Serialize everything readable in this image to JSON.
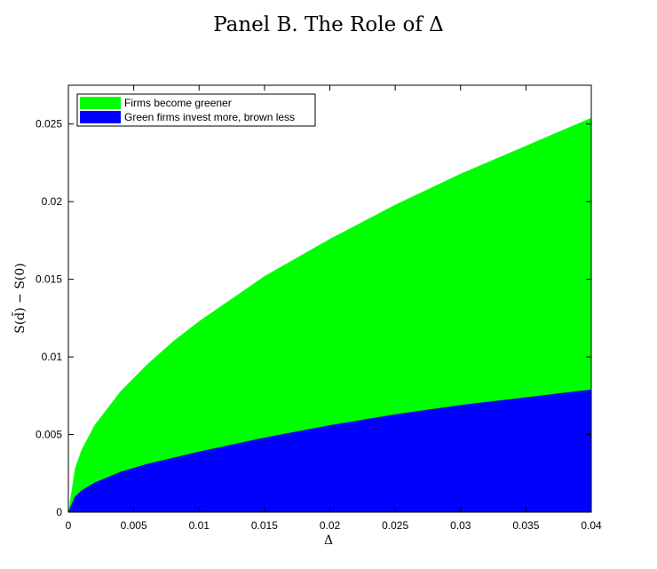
{
  "chart_data": {
    "type": "area",
    "title": "Panel B. The Role of Δ",
    "xlabel": "Δ",
    "ylabel": "S(d̄) − S(0)",
    "xlim": [
      0,
      0.04
    ],
    "ylim": [
      0,
      0.0275
    ],
    "x_ticks": [
      0,
      0.005,
      0.01,
      0.015,
      0.02,
      0.025,
      0.03,
      0.035,
      0.04
    ],
    "x_tick_labels": [
      "0",
      "0.005",
      "0.01",
      "0.015",
      "0.02",
      "0.025",
      "0.03",
      "0.035",
      "0.04"
    ],
    "y_ticks": [
      0,
      0.005,
      0.01,
      0.015,
      0.02,
      0.025
    ],
    "y_tick_labels": [
      "0",
      "0.005",
      "0.01",
      "0.015",
      "0.02",
      "0.025"
    ],
    "grid": false,
    "legend_position": "top-left",
    "stacked": false,
    "x": [
      0,
      0.0005,
      0.001,
      0.002,
      0.004,
      0.006,
      0.008,
      0.01,
      0.015,
      0.02,
      0.025,
      0.03,
      0.035,
      0.04
    ],
    "series": [
      {
        "name": "Firms become greener",
        "color": "#00ff00",
        "values": [
          0,
          0.0028,
          0.004,
          0.0056,
          0.0078,
          0.0095,
          0.011,
          0.0123,
          0.0152,
          0.0176,
          0.0198,
          0.0218,
          0.0236,
          0.0254
        ]
      },
      {
        "name": "Green firms invest more, brown less",
        "color": "#0000ff",
        "values": [
          0,
          0.001,
          0.0014,
          0.0019,
          0.0026,
          0.0031,
          0.0035,
          0.0039,
          0.0048,
          0.0056,
          0.0063,
          0.0069,
          0.0074,
          0.0079
        ]
      }
    ]
  }
}
